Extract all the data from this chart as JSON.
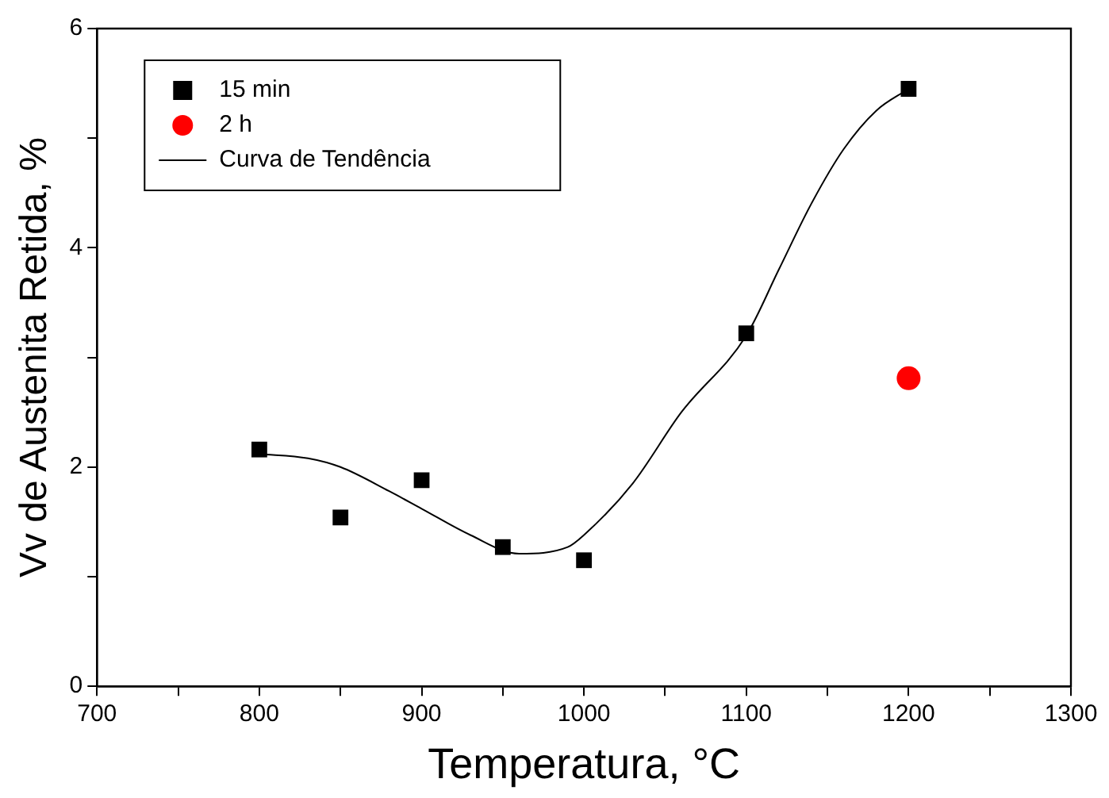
{
  "chart_data": {
    "type": "scatter",
    "xlabel": "Temperatura, °C",
    "ylabel": "Vv de Austenita Retida, %",
    "xlim": [
      700,
      1300
    ],
    "xticks": [
      700,
      {
        "value": 750,
        "label": null
      },
      800,
      {
        "value": 850,
        "label": null
      },
      900,
      {
        "value": 950,
        "label": null
      },
      1000,
      {
        "value": 1050,
        "label": null
      },
      1100,
      {
        "value": 1150,
        "label": null
      },
      1200,
      {
        "value": 1250,
        "label": null
      },
      1300
    ],
    "ylim": [
      0,
      6
    ],
    "yticks": [
      0,
      {
        "value": 1,
        "label": null
      },
      2,
      {
        "value": 3,
        "label": null
      },
      4,
      {
        "value": 5,
        "label": null
      },
      6
    ],
    "grid": false,
    "legend": "top left",
    "series": [
      {
        "name": "15 min",
        "type": "scatter",
        "marker": "square",
        "color": "#000000",
        "x": [
          800,
          850,
          900,
          950,
          1000,
          1100,
          1200
        ],
        "values": [
          2.16,
          1.54,
          1.88,
          1.27,
          1.15,
          3.22,
          5.45
        ]
      },
      {
        "name": "2 h",
        "type": "scatter",
        "marker": "circle",
        "color": "#ff0000",
        "x": [
          1200
        ],
        "values": [
          2.81
        ]
      },
      {
        "name": "Curva de Tendência",
        "type": "line",
        "marker": "none",
        "color": "#000000",
        "x": [
          800,
          830,
          850,
          880,
          900,
          930,
          960,
          990,
          1000,
          1030,
          1060,
          1100,
          1120,
          1140,
          1160,
          1180,
          1200
        ],
        "values": [
          2.12,
          2.08,
          2.0,
          1.78,
          1.62,
          1.38,
          1.21,
          1.27,
          1.38,
          1.85,
          2.5,
          3.2,
          3.8,
          4.4,
          4.9,
          5.25,
          5.45
        ]
      }
    ]
  }
}
